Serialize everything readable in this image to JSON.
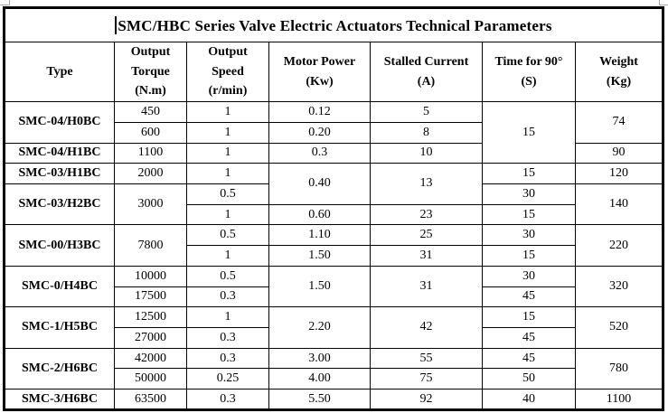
{
  "title": "SMC/HBC Series Valve Electric Actuators Technical Parameters",
  "colors": {
    "text": "#000000",
    "border": "#000000",
    "background": "#ffffff",
    "frame_artifact": "#a8a8a8"
  },
  "header": {
    "cells": [
      {
        "key": "type",
        "lines": [
          "Type"
        ]
      },
      {
        "key": "output-torque",
        "lines": [
          "Output",
          "Torque",
          "(N.m)"
        ]
      },
      {
        "key": "output-speed",
        "lines": [
          "Output",
          "Speed",
          "(r/min)"
        ]
      },
      {
        "key": "motor-power",
        "lines": [
          "Motor Power",
          "(Kw)"
        ]
      },
      {
        "key": "stalled-current",
        "lines": [
          "Stalled Current",
          "(A)"
        ]
      },
      {
        "key": "time-for-90",
        "lines": [
          "Time for 90°",
          "(S)"
        ]
      },
      {
        "key": "weight",
        "lines": [
          "Weight",
          "(Kg)"
        ]
      }
    ]
  },
  "rows": [
    {
      "cells": [
        {
          "text": "SMC-04/H0BC",
          "rowspan": 2,
          "type": true
        },
        {
          "text": "450"
        },
        {
          "text": "1"
        },
        {
          "text": "0.12"
        },
        {
          "text": "5"
        },
        {
          "text": "15",
          "rowspan": 3
        },
        {
          "text": "74",
          "rowspan": 2
        }
      ]
    },
    {
      "cells": [
        {
          "text": "600"
        },
        {
          "text": "1"
        },
        {
          "text": "0.20"
        },
        {
          "text": "8"
        }
      ]
    },
    {
      "cells": [
        {
          "text": "SMC-04/H1BC",
          "type": true
        },
        {
          "text": "1100"
        },
        {
          "text": "1"
        },
        {
          "text": "0.3"
        },
        {
          "text": "10"
        },
        {
          "text": "90"
        }
      ]
    },
    {
      "cells": [
        {
          "text": "SMC-03/H1BC",
          "type": true
        },
        {
          "text": "2000"
        },
        {
          "text": "1"
        },
        {
          "text": "0.40",
          "rowspan": 2
        },
        {
          "text": "13",
          "rowspan": 2
        },
        {
          "text": "15"
        },
        {
          "text": "120"
        }
      ]
    },
    {
      "cells": [
        {
          "text": "SMC-03/H2BC",
          "rowspan": 2,
          "type": true
        },
        {
          "text": "3000",
          "rowspan": 2
        },
        {
          "text": "0.5"
        },
        {
          "text": "30"
        },
        {
          "text": "140",
          "rowspan": 2
        }
      ]
    },
    {
      "cells": [
        {
          "text": "1"
        },
        {
          "text": "0.60"
        },
        {
          "text": "23"
        },
        {
          "text": "15"
        }
      ]
    },
    {
      "cells": [
        {
          "text": "SMC-00/H3BC",
          "rowspan": 2,
          "type": true
        },
        {
          "text": "7800",
          "rowspan": 2
        },
        {
          "text": "0.5"
        },
        {
          "text": "1.10"
        },
        {
          "text": "25"
        },
        {
          "text": "30"
        },
        {
          "text": "220",
          "rowspan": 2
        }
      ]
    },
    {
      "cells": [
        {
          "text": "1"
        },
        {
          "text": "1.50"
        },
        {
          "text": "31"
        },
        {
          "text": "15"
        }
      ]
    },
    {
      "cells": [
        {
          "text": "SMC-0/H4BC",
          "rowspan": 2,
          "type": true
        },
        {
          "text": "10000"
        },
        {
          "text": "0.5"
        },
        {
          "text": "1.50",
          "rowspan": 2
        },
        {
          "text": "31",
          "rowspan": 2
        },
        {
          "text": "30"
        },
        {
          "text": "320",
          "rowspan": 2
        }
      ]
    },
    {
      "cells": [
        {
          "text": "17500"
        },
        {
          "text": "0.3"
        },
        {
          "text": "45"
        }
      ]
    },
    {
      "cells": [
        {
          "text": "SMC-1/H5BC",
          "rowspan": 2,
          "type": true
        },
        {
          "text": "12500"
        },
        {
          "text": "1"
        },
        {
          "text": "2.20",
          "rowspan": 2
        },
        {
          "text": "42",
          "rowspan": 2
        },
        {
          "text": "15"
        },
        {
          "text": "520",
          "rowspan": 2
        }
      ]
    },
    {
      "cells": [
        {
          "text": "27000"
        },
        {
          "text": "0.3"
        },
        {
          "text": "45"
        }
      ]
    },
    {
      "cells": [
        {
          "text": "SMC-2/H6BC",
          "rowspan": 2,
          "type": true
        },
        {
          "text": "42000"
        },
        {
          "text": "0.3"
        },
        {
          "text": "3.00"
        },
        {
          "text": "55"
        },
        {
          "text": "45"
        },
        {
          "text": "780",
          "rowspan": 2
        }
      ]
    },
    {
      "cells": [
        {
          "text": "50000"
        },
        {
          "text": "0.25"
        },
        {
          "text": "4.00"
        },
        {
          "text": "75"
        },
        {
          "text": "50"
        }
      ]
    },
    {
      "cells": [
        {
          "text": "SMC-3/H6BC",
          "type": true
        },
        {
          "text": "63500"
        },
        {
          "text": "0.3"
        },
        {
          "text": "5.50"
        },
        {
          "text": "92"
        },
        {
          "text": "40"
        },
        {
          "text": "1100"
        }
      ]
    }
  ]
}
